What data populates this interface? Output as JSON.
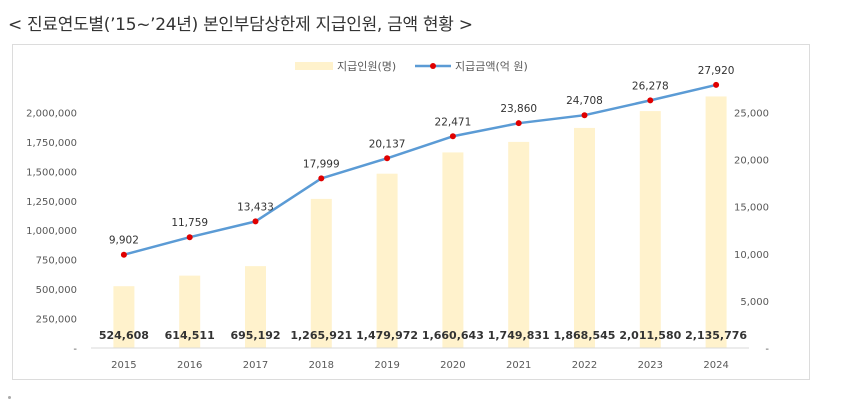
{
  "header": {
    "title": "< 진료연도별(’15~’24년) 본인부담상한제 지급인원, 금액 현황 >"
  },
  "chart_data": {
    "type": "bar+line",
    "categories": [
      "2015",
      "2016",
      "2017",
      "2018",
      "2019",
      "2020",
      "2021",
      "2022",
      "2023",
      "2024"
    ],
    "series": [
      {
        "name": "지급인원(명)",
        "type": "bar",
        "axis": "left",
        "values": [
          524608,
          614511,
          695192,
          1265921,
          1479972,
          1660643,
          1749831,
          1868545,
          2011580,
          2135776
        ],
        "labels": [
          "524,608",
          "614,511",
          "695,192",
          "1,265,921",
          "1,479,972",
          "1,660,643",
          "1,749,831",
          "1,868,545",
          "2,011,580",
          "2,135,776"
        ]
      },
      {
        "name": "지급금액(억 원)",
        "type": "line",
        "axis": "right",
        "values": [
          9902,
          11759,
          13433,
          17999,
          20137,
          22471,
          23860,
          24708,
          26278,
          27920
        ],
        "labels": [
          "9,902",
          "11,759",
          "13,433",
          "17,999",
          "20,137",
          "22,471",
          "23,860",
          "24,708",
          "26,278",
          "27,920"
        ]
      }
    ],
    "y_left": {
      "min": 0,
      "max": 2250000,
      "ticks": [
        0,
        250000,
        500000,
        750000,
        1000000,
        1250000,
        1500000,
        1750000,
        2000000
      ],
      "tick_labels": [
        "-",
        "250,000",
        "500,000",
        "750,000",
        "1,000,000",
        "1,250,000",
        "1,500,000",
        "1,750,000",
        "2,000,000"
      ]
    },
    "y_right": {
      "min": 0,
      "max": 28125,
      "ticks": [
        0,
        5000,
        10000,
        15000,
        20000,
        25000
      ],
      "tick_labels": [
        "-",
        "5,000",
        "10,000",
        "15,000",
        "20,000",
        "25,000"
      ]
    },
    "legend_position": "top-center",
    "colors": {
      "bar": "#fff2cc",
      "line": "#5b9bd5",
      "marker": "#e00000"
    }
  }
}
